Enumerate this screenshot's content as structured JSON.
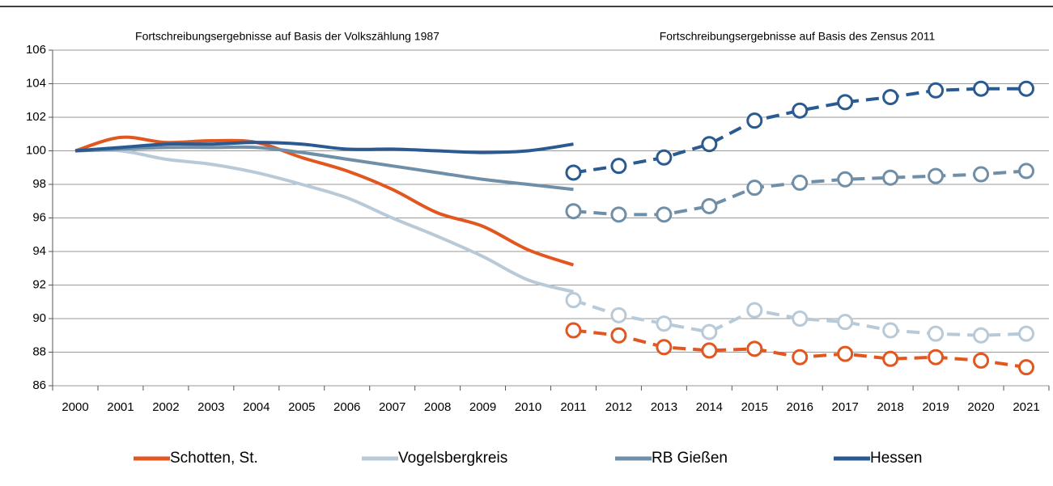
{
  "chart_data": {
    "type": "line",
    "annotations": [
      "Fortschreibungsergebnisse auf Basis der Volkszählung 1987",
      "Fortschreibungsergebnisse auf Basis des Zensus 2011"
    ],
    "categories": [
      "2000",
      "2001",
      "2002",
      "2003",
      "2004",
      "2005",
      "2006",
      "2007",
      "2008",
      "2009",
      "2010",
      "2011",
      "2012",
      "2013",
      "2014",
      "2015",
      "2016",
      "2017",
      "2018",
      "2019",
      "2020",
      "2021"
    ],
    "ylim": [
      86,
      106
    ],
    "yticks": [
      86,
      88,
      90,
      92,
      94,
      96,
      98,
      100,
      102,
      104,
      106
    ],
    "grid": true,
    "legend": "bottom",
    "series": [
      {
        "name": "Schotten, St.",
        "color": "#e2561f",
        "values": [
          100,
          100.8,
          100.5,
          100.6,
          100.5,
          99.6,
          98.8,
          97.7,
          96.3,
          95.5,
          94.1,
          93.2,
          null,
          null,
          null,
          null,
          null,
          null,
          null,
          null,
          null,
          null
        ],
        "values_zensus": [
          null,
          null,
          null,
          null,
          null,
          null,
          null,
          null,
          null,
          null,
          null,
          89.3,
          89.0,
          88.3,
          88.1,
          88.2,
          87.7,
          87.9,
          87.6,
          87.7,
          87.5,
          87.1
        ]
      },
      {
        "name": "Vogelsbergkreis",
        "color": "#b8c9d8",
        "values": [
          100,
          100.0,
          99.5,
          99.2,
          98.7,
          98.0,
          97.2,
          96.0,
          94.9,
          93.7,
          92.3,
          91.6,
          null,
          null,
          null,
          null,
          null,
          null,
          null,
          null,
          null,
          null
        ],
        "values_zensus": [
          null,
          null,
          null,
          null,
          null,
          null,
          null,
          null,
          null,
          null,
          null,
          91.1,
          90.2,
          89.7,
          89.2,
          90.5,
          90.0,
          89.8,
          89.3,
          89.1,
          89.0,
          89.1
        ]
      },
      {
        "name": "RB Gießen",
        "color": "#6f8ea8",
        "values": [
          100,
          100.1,
          100.2,
          100.2,
          100.2,
          99.9,
          99.5,
          99.1,
          98.7,
          98.3,
          98.0,
          97.7,
          null,
          null,
          null,
          null,
          null,
          null,
          null,
          null,
          null,
          null
        ],
        "values_zensus": [
          null,
          null,
          null,
          null,
          null,
          null,
          null,
          null,
          null,
          null,
          null,
          96.4,
          96.2,
          96.2,
          96.7,
          97.8,
          98.1,
          98.3,
          98.4,
          98.5,
          98.6,
          98.8
        ]
      },
      {
        "name": "Hessen",
        "color": "#2a5a92",
        "values": [
          100,
          100.2,
          100.4,
          100.4,
          100.5,
          100.4,
          100.1,
          100.1,
          100.0,
          99.9,
          100.0,
          100.4,
          null,
          null,
          null,
          null,
          null,
          null,
          null,
          null,
          null,
          null
        ],
        "values_zensus": [
          null,
          null,
          null,
          null,
          null,
          null,
          null,
          null,
          null,
          null,
          null,
          98.7,
          99.1,
          99.6,
          100.4,
          101.8,
          102.4,
          102.9,
          103.2,
          103.6,
          103.7,
          103.7
        ]
      }
    ]
  }
}
